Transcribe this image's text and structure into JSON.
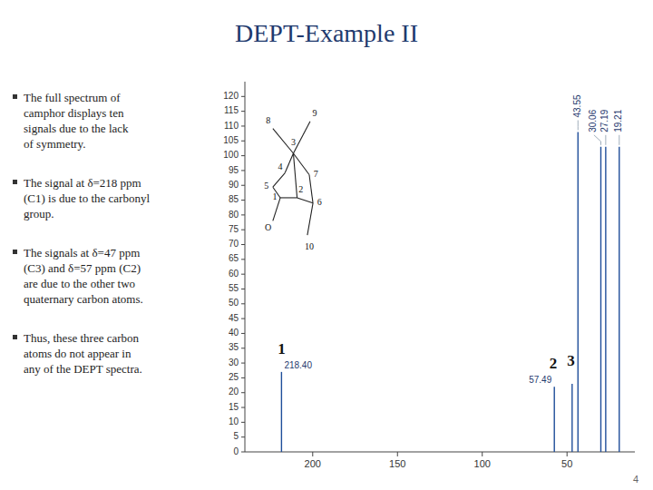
{
  "chart_data": {
    "type": "stem",
    "title": "DEPT-Example II",
    "notes": [
      "The full spectrum of\ncamphor displays ten\nsignals due to the lack\nof symmetry.",
      "The signal at δ=218 ppm\n(C1) is due to the carbonyl\ngroup.",
      "The signals at δ=47 ppm\n(C3) and δ=57 ppm (C2)\nare due to the other two\nquaternary carbon atoms.",
      "Thus, these three carbon\natoms do not appear in\nany of the DEPT spectra."
    ],
    "page_number": "4",
    "x": [
      218.4,
      57.49,
      47.0,
      43.55,
      30.06,
      27.19,
      19.21
    ],
    "values": [
      27,
      22,
      23,
      108,
      103,
      103,
      103
    ],
    "annotations": [
      {
        "text": "43.55",
        "x": 43.55
      },
      {
        "text": "30.06",
        "x": 30.06
      },
      {
        "text": "27.19",
        "x": 27.19
      },
      {
        "text": "19.21",
        "x": 19.21
      },
      {
        "text": "218.40",
        "x": 218.4
      },
      {
        "text": "57.49",
        "x": 57.49
      }
    ],
    "peak_numbers": [
      {
        "text": "1",
        "x": 218.4
      },
      {
        "text": "2",
        "x": 57.49
      },
      {
        "text": "3",
        "x": 47.0
      }
    ],
    "structure_labels": [
      "1",
      "2",
      "3",
      "4",
      "5",
      "6",
      "7",
      "8",
      "9",
      "10",
      "O"
    ],
    "xlim": [
      240,
      10
    ],
    "ylim": [
      0,
      125
    ],
    "xticks": [
      200,
      150,
      100,
      50
    ],
    "yticks": [
      0,
      5,
      10,
      15,
      20,
      25,
      30,
      35,
      40,
      45,
      50,
      55,
      60,
      65,
      70,
      75,
      80,
      85,
      90,
      95,
      100,
      105,
      110,
      115,
      120
    ],
    "grid": false
  }
}
